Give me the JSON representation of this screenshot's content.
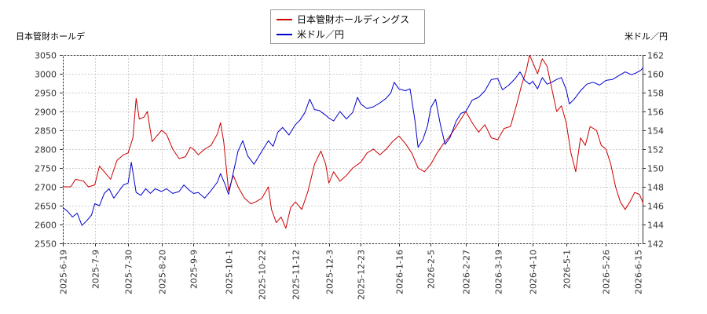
{
  "chart_data": {
    "type": "line",
    "title": "",
    "y_left_label": "日本管財ホールデ",
    "y_right_label": "米ドル／円",
    "y_left_lim": [
      2550,
      3050
    ],
    "y_left_ticks": [
      2550,
      2600,
      2650,
      2700,
      2750,
      2800,
      2850,
      2900,
      2950,
      3000,
      3050
    ],
    "y_right_lim": [
      142,
      162
    ],
    "y_right_ticks": [
      142,
      144,
      146,
      148,
      150,
      152,
      154,
      156,
      158,
      160,
      162
    ],
    "x_ticks": [
      "2025-6-19",
      "2025-7-9",
      "2025-7-30",
      "2025-8-20",
      "2025-9-9",
      "2025-10-1",
      "2025-10-22",
      "2025-11-12",
      "2025-12-3",
      "2025-12-23",
      "2026-1-16",
      "2026-2-5",
      "2026-2-27",
      "2026-3-19",
      "2026-4-10",
      "2026-5-1",
      "2026-5-26",
      "2026-6-15"
    ],
    "grid": true,
    "legend_position": "top-center",
    "series": [
      {
        "name": "日本管財ホールディングス",
        "axis": "left",
        "color": "#cc0000",
        "points": [
          [
            "2025-6-19",
            2700
          ],
          [
            "2025-6-24",
            2700
          ],
          [
            "2025-6-27",
            2720
          ],
          [
            "2025-7-2",
            2715
          ],
          [
            "2025-7-5",
            2700
          ],
          [
            "2025-7-9",
            2705
          ],
          [
            "2025-7-12",
            2755
          ],
          [
            "2025-7-16",
            2735
          ],
          [
            "2025-7-19",
            2720
          ],
          [
            "2025-7-23",
            2770
          ],
          [
            "2025-7-27",
            2785
          ],
          [
            "2025-7-30",
            2790
          ],
          [
            "2025-8-2",
            2830
          ],
          [
            "2025-8-4",
            2935
          ],
          [
            "2025-8-6",
            2880
          ],
          [
            "2025-8-9",
            2885
          ],
          [
            "2025-8-11",
            2900
          ],
          [
            "2025-8-14",
            2820
          ],
          [
            "2025-8-17",
            2835
          ],
          [
            "2025-8-20",
            2850
          ],
          [
            "2025-8-23",
            2840
          ],
          [
            "2025-8-27",
            2800
          ],
          [
            "2025-8-31",
            2775
          ],
          [
            "2025-9-4",
            2780
          ],
          [
            "2025-9-7",
            2805
          ],
          [
            "2025-9-9",
            2800
          ],
          [
            "2025-9-12",
            2785
          ],
          [
            "2025-9-16",
            2800
          ],
          [
            "2025-9-20",
            2810
          ],
          [
            "2025-9-24",
            2840
          ],
          [
            "2025-9-26",
            2870
          ],
          [
            "2025-9-28",
            2820
          ],
          [
            "2025-10-1",
            2690
          ],
          [
            "2025-10-4",
            2730
          ],
          [
            "2025-10-7",
            2700
          ],
          [
            "2025-10-11",
            2670
          ],
          [
            "2025-10-15",
            2655
          ],
          [
            "2025-10-18",
            2660
          ],
          [
            "2025-10-22",
            2670
          ],
          [
            "2025-10-26",
            2700
          ],
          [
            "2025-10-28",
            2640
          ],
          [
            "2025-10-31",
            2605
          ],
          [
            "2025-11-3",
            2620
          ],
          [
            "2025-11-6",
            2590
          ],
          [
            "2025-11-9",
            2645
          ],
          [
            "2025-11-12",
            2660
          ],
          [
            "2025-11-16",
            2640
          ],
          [
            "2025-11-20",
            2690
          ],
          [
            "2025-11-24",
            2760
          ],
          [
            "2025-11-28",
            2795
          ],
          [
            "2025-12-1",
            2760
          ],
          [
            "2025-12-3",
            2710
          ],
          [
            "2025-12-6",
            2740
          ],
          [
            "2025-12-10",
            2715
          ],
          [
            "2025-12-14",
            2730
          ],
          [
            "2025-12-18",
            2750
          ],
          [
            "2025-12-23",
            2765
          ],
          [
            "2025-12-27",
            2790
          ],
          [
            "2025-12-31",
            2800
          ],
          [
            "2026-1-4",
            2785
          ],
          [
            "2026-1-8",
            2800
          ],
          [
            "2026-1-12",
            2820
          ],
          [
            "2026-1-16",
            2835
          ],
          [
            "2026-1-20",
            2815
          ],
          [
            "2026-1-24",
            2790
          ],
          [
            "2026-1-28",
            2750
          ],
          [
            "2026-2-1",
            2740
          ],
          [
            "2026-2-5",
            2760
          ],
          [
            "2026-2-9",
            2790
          ],
          [
            "2026-2-13",
            2815
          ],
          [
            "2026-2-17",
            2835
          ],
          [
            "2026-2-21",
            2860
          ],
          [
            "2026-2-24",
            2880
          ],
          [
            "2026-2-27",
            2900
          ],
          [
            "2026-3-3",
            2870
          ],
          [
            "2026-3-7",
            2845
          ],
          [
            "2026-3-11",
            2865
          ],
          [
            "2026-3-15",
            2830
          ],
          [
            "2026-3-19",
            2825
          ],
          [
            "2026-3-23",
            2855
          ],
          [
            "2026-3-27",
            2860
          ],
          [
            "2026-3-31",
            2920
          ],
          [
            "2026-4-3",
            2970
          ],
          [
            "2026-4-6",
            3010
          ],
          [
            "2026-4-8",
            3050
          ],
          [
            "2026-4-10",
            3030
          ],
          [
            "2026-4-13",
            3000
          ],
          [
            "2026-4-16",
            3040
          ],
          [
            "2026-4-19",
            3020
          ],
          [
            "2026-4-22",
            2960
          ],
          [
            "2026-4-25",
            2900
          ],
          [
            "2026-4-28",
            2915
          ],
          [
            "2026-5-1",
            2870
          ],
          [
            "2026-5-4",
            2790
          ],
          [
            "2026-5-7",
            2740
          ],
          [
            "2026-5-10",
            2830
          ],
          [
            "2026-5-13",
            2810
          ],
          [
            "2026-5-16",
            2860
          ],
          [
            "2026-5-20",
            2850
          ],
          [
            "2026-5-23",
            2810
          ],
          [
            "2026-5-26",
            2800
          ],
          [
            "2026-5-29",
            2760
          ],
          [
            "2026-6-1",
            2700
          ],
          [
            "2026-6-4",
            2660
          ],
          [
            "2026-6-7",
            2640
          ],
          [
            "2026-6-10",
            2660
          ],
          [
            "2026-6-13",
            2685
          ],
          [
            "2026-6-16",
            2680
          ],
          [
            "2026-6-19",
            2650
          ]
        ]
      },
      {
        "name": "米ドル／円",
        "axis": "right",
        "color": "#0000cc",
        "points": [
          [
            "2025-6-19",
            145.8
          ],
          [
            "2025-6-22",
            145.4
          ],
          [
            "2025-6-25",
            144.8
          ],
          [
            "2025-6-28",
            145.2
          ],
          [
            "2025-7-1",
            143.9
          ],
          [
            "2025-7-4",
            144.4
          ],
          [
            "2025-7-7",
            145.0
          ],
          [
            "2025-7-9",
            146.2
          ],
          [
            "2025-7-12",
            146.0
          ],
          [
            "2025-7-15",
            147.3
          ],
          [
            "2025-7-18",
            147.8
          ],
          [
            "2025-7-21",
            146.8
          ],
          [
            "2025-7-24",
            147.5
          ],
          [
            "2025-7-27",
            148.2
          ],
          [
            "2025-7-30",
            148.4
          ],
          [
            "2025-8-1",
            150.6
          ],
          [
            "2025-8-4",
            147.4
          ],
          [
            "2025-8-7",
            147.1
          ],
          [
            "2025-8-10",
            147.8
          ],
          [
            "2025-8-13",
            147.3
          ],
          [
            "2025-8-16",
            147.8
          ],
          [
            "2025-8-20",
            147.5
          ],
          [
            "2025-8-23",
            147.8
          ],
          [
            "2025-8-27",
            147.3
          ],
          [
            "2025-8-31",
            147.5
          ],
          [
            "2025-9-3",
            148.2
          ],
          [
            "2025-9-6",
            147.7
          ],
          [
            "2025-9-9",
            147.3
          ],
          [
            "2025-9-12",
            147.4
          ],
          [
            "2025-9-16",
            146.8
          ],
          [
            "2025-9-20",
            147.6
          ],
          [
            "2025-9-24",
            148.5
          ],
          [
            "2025-9-26",
            149.4
          ],
          [
            "2025-9-29",
            148.2
          ],
          [
            "2025-10-1",
            147.2
          ],
          [
            "2025-10-4",
            149.5
          ],
          [
            "2025-10-7",
            151.8
          ],
          [
            "2025-10-10",
            152.9
          ],
          [
            "2025-10-13",
            151.3
          ],
          [
            "2025-10-17",
            150.4
          ],
          [
            "2025-10-22",
            151.8
          ],
          [
            "2025-10-26",
            152.9
          ],
          [
            "2025-10-29",
            152.3
          ],
          [
            "2025-11-1",
            153.8
          ],
          [
            "2025-11-4",
            154.3
          ],
          [
            "2025-11-8",
            153.5
          ],
          [
            "2025-11-12",
            154.6
          ],
          [
            "2025-11-15",
            155.1
          ],
          [
            "2025-11-18",
            155.9
          ],
          [
            "2025-11-21",
            157.3
          ],
          [
            "2025-11-24",
            156.2
          ],
          [
            "2025-11-27",
            156.1
          ],
          [
            "2025-12-1",
            155.6
          ],
          [
            "2025-12-3",
            155.3
          ],
          [
            "2025-12-6",
            155.0
          ],
          [
            "2025-12-10",
            156.0
          ],
          [
            "2025-12-14",
            155.2
          ],
          [
            "2025-12-18",
            155.9
          ],
          [
            "2025-12-21",
            157.5
          ],
          [
            "2025-12-23",
            156.8
          ],
          [
            "2025-12-27",
            156.3
          ],
          [
            "2025-12-31",
            156.5
          ],
          [
            "2026-1-4",
            156.9
          ],
          [
            "2026-1-8",
            157.4
          ],
          [
            "2026-1-11",
            158.0
          ],
          [
            "2026-1-13",
            159.1
          ],
          [
            "2026-1-16",
            158.4
          ],
          [
            "2026-1-20",
            158.2
          ],
          [
            "2026-1-23",
            158.4
          ],
          [
            "2026-1-26",
            155.1
          ],
          [
            "2026-1-28",
            152.2
          ],
          [
            "2026-1-31",
            153.0
          ],
          [
            "2026-2-3",
            154.5
          ],
          [
            "2026-2-5",
            156.4
          ],
          [
            "2026-2-8",
            157.3
          ],
          [
            "2026-2-11",
            154.6
          ],
          [
            "2026-2-14",
            152.5
          ],
          [
            "2026-2-17",
            153.2
          ],
          [
            "2026-2-21",
            155.0
          ],
          [
            "2026-2-24",
            155.8
          ],
          [
            "2026-2-27",
            156.0
          ],
          [
            "2026-3-3",
            157.2
          ],
          [
            "2026-3-7",
            157.5
          ],
          [
            "2026-3-11",
            158.2
          ],
          [
            "2026-3-15",
            159.4
          ],
          [
            "2026-3-19",
            159.5
          ],
          [
            "2026-3-22",
            158.3
          ],
          [
            "2026-3-26",
            158.8
          ],
          [
            "2026-3-30",
            159.5
          ],
          [
            "2026-4-2",
            160.2
          ],
          [
            "2026-4-5",
            159.3
          ],
          [
            "2026-4-8",
            158.9
          ],
          [
            "2026-4-10",
            159.2
          ],
          [
            "2026-4-13",
            158.4
          ],
          [
            "2026-4-16",
            159.6
          ],
          [
            "2026-4-19",
            158.9
          ],
          [
            "2026-4-22",
            159.1
          ],
          [
            "2026-4-25",
            159.4
          ],
          [
            "2026-4-28",
            159.6
          ],
          [
            "2026-5-1",
            158.3
          ],
          [
            "2026-5-3",
            156.8
          ],
          [
            "2026-5-6",
            157.3
          ],
          [
            "2026-5-10",
            158.2
          ],
          [
            "2026-5-14",
            158.9
          ],
          [
            "2026-5-18",
            159.1
          ],
          [
            "2026-5-22",
            158.8
          ],
          [
            "2026-5-26",
            159.3
          ],
          [
            "2026-5-30",
            159.4
          ],
          [
            "2026-6-3",
            159.8
          ],
          [
            "2026-6-7",
            160.2
          ],
          [
            "2026-6-11",
            159.9
          ],
          [
            "2026-6-14",
            160.1
          ],
          [
            "2026-6-17",
            160.4
          ],
          [
            "2026-6-19",
            160.8
          ]
        ]
      }
    ]
  }
}
